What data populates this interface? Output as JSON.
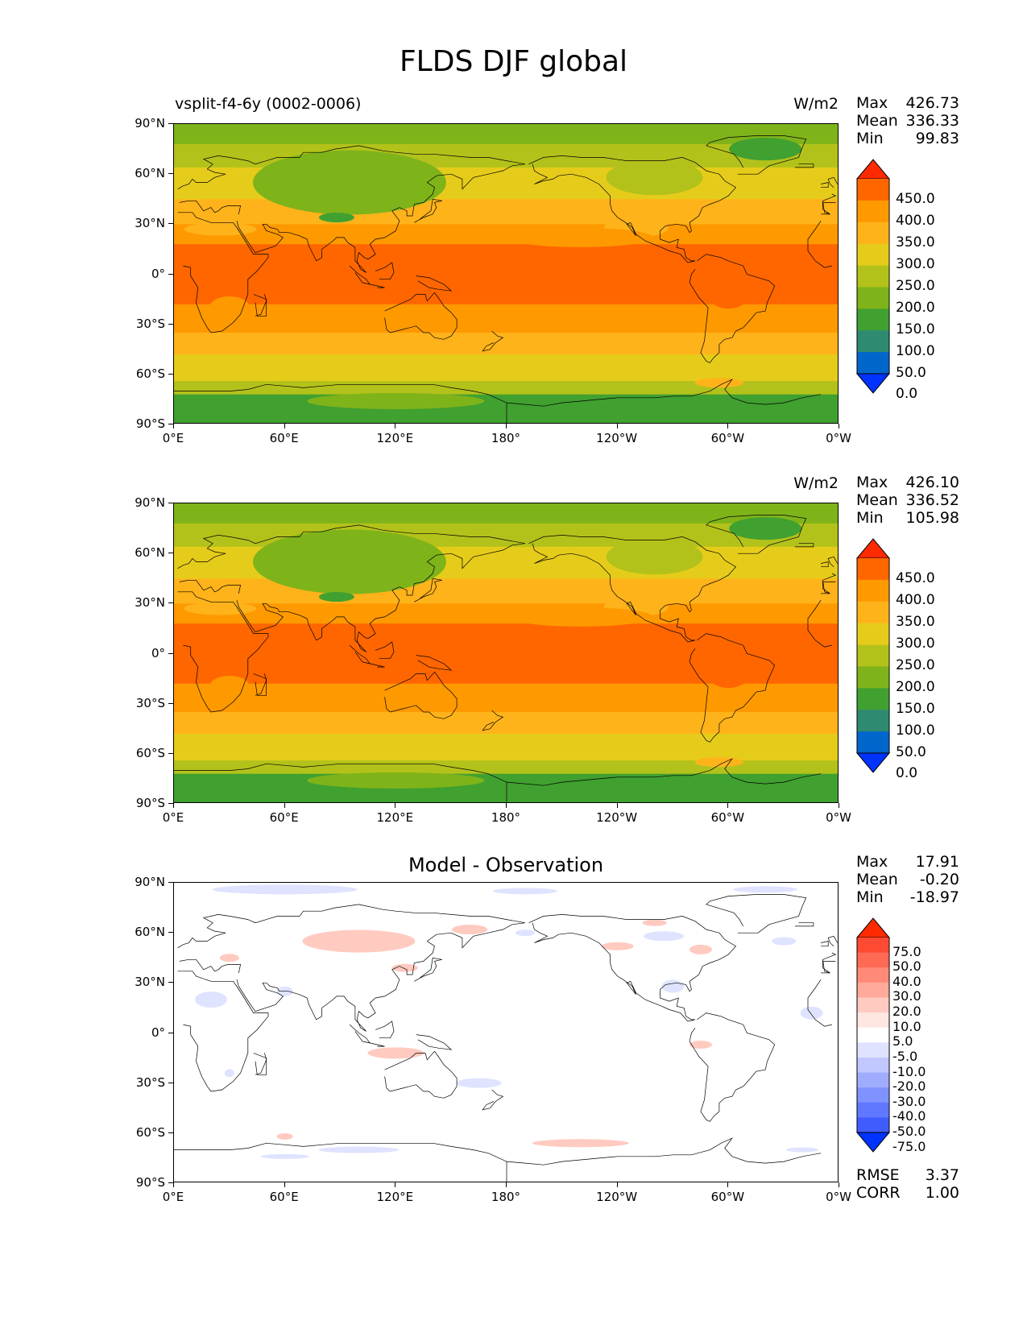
{
  "title": "FLDS DJF global",
  "lat_ticks": [
    "90°N",
    "60°N",
    "30°N",
    "0°",
    "30°S",
    "60°S",
    "90°S"
  ],
  "lon_ticks": [
    "0°E",
    "60°E",
    "120°E",
    "180°",
    "120°W",
    "60°W",
    "0°W"
  ],
  "panels": [
    {
      "case_name": "vsplit-f4-6y (0002-0006)",
      "units": "W/m2",
      "panel_title": "",
      "stats": {
        "max_label": "Max",
        "max": "426.73",
        "mean_label": "Mean",
        "mean": "336.33",
        "min_label": "Min",
        "min": "99.83"
      }
    },
    {
      "case_name": "",
      "units": "W/m2",
      "panel_title": "",
      "stats": {
        "max_label": "Max",
        "max": "426.10",
        "mean_label": "Mean",
        "mean": "336.52",
        "min_label": "Min",
        "min": "105.98"
      }
    },
    {
      "case_name": "",
      "units": "",
      "panel_title": "Model - Observation",
      "stats": {
        "max_label": "Max",
        "max": "17.91",
        "mean_label": "Mean",
        "mean": "-0.20",
        "min_label": "Min",
        "min": "-18.97"
      },
      "metrics": {
        "rmse_label": "RMSE",
        "rmse": "3.37",
        "corr_label": "CORR",
        "corr": "1.00"
      }
    }
  ],
  "colorbar_main": {
    "levels": [
      "450.0",
      "400.0",
      "350.0",
      "300.0",
      "250.0",
      "200.0",
      "150.0",
      "100.0",
      "50.0",
      "0.0"
    ],
    "colors": [
      "#ff2a00",
      "#ff6600",
      "#ff9900",
      "#ffb31a",
      "#e6cc1a",
      "#b3c21a",
      "#7fb31a",
      "#40a030",
      "#2e8a70",
      "#0066cc",
      "#0033ff"
    ]
  },
  "colorbar_diff": {
    "levels": [
      "75.0",
      "50.0",
      "40.0",
      "30.0",
      "20.0",
      "10.0",
      "5.0",
      "-5.0",
      "-10.0",
      "-20.0",
      "-30.0",
      "-40.0",
      "-50.0",
      "-75.0"
    ],
    "colors": [
      "#ff2a00",
      "#ff4a33",
      "#ff6a55",
      "#ff8a78",
      "#ffaa9a",
      "#ffcac0",
      "#ffe6e0",
      "#ffffff",
      "#dfe3ff",
      "#c0c8ff",
      "#a0adff",
      "#8092ff",
      "#6077ff",
      "#405cff",
      "#0033ff"
    ]
  },
  "map_colors": {
    "polar": "#7fb31a",
    "subpolar": "#b3c21a",
    "midlat": "#e6cc1a",
    "subtrop": "#ffb31a",
    "trop": "#ff9900",
    "warm": "#ff6600",
    "coldspot": "#40a030",
    "diff_pos": "#ffcac0",
    "diff_neg": "#dfe3ff"
  }
}
